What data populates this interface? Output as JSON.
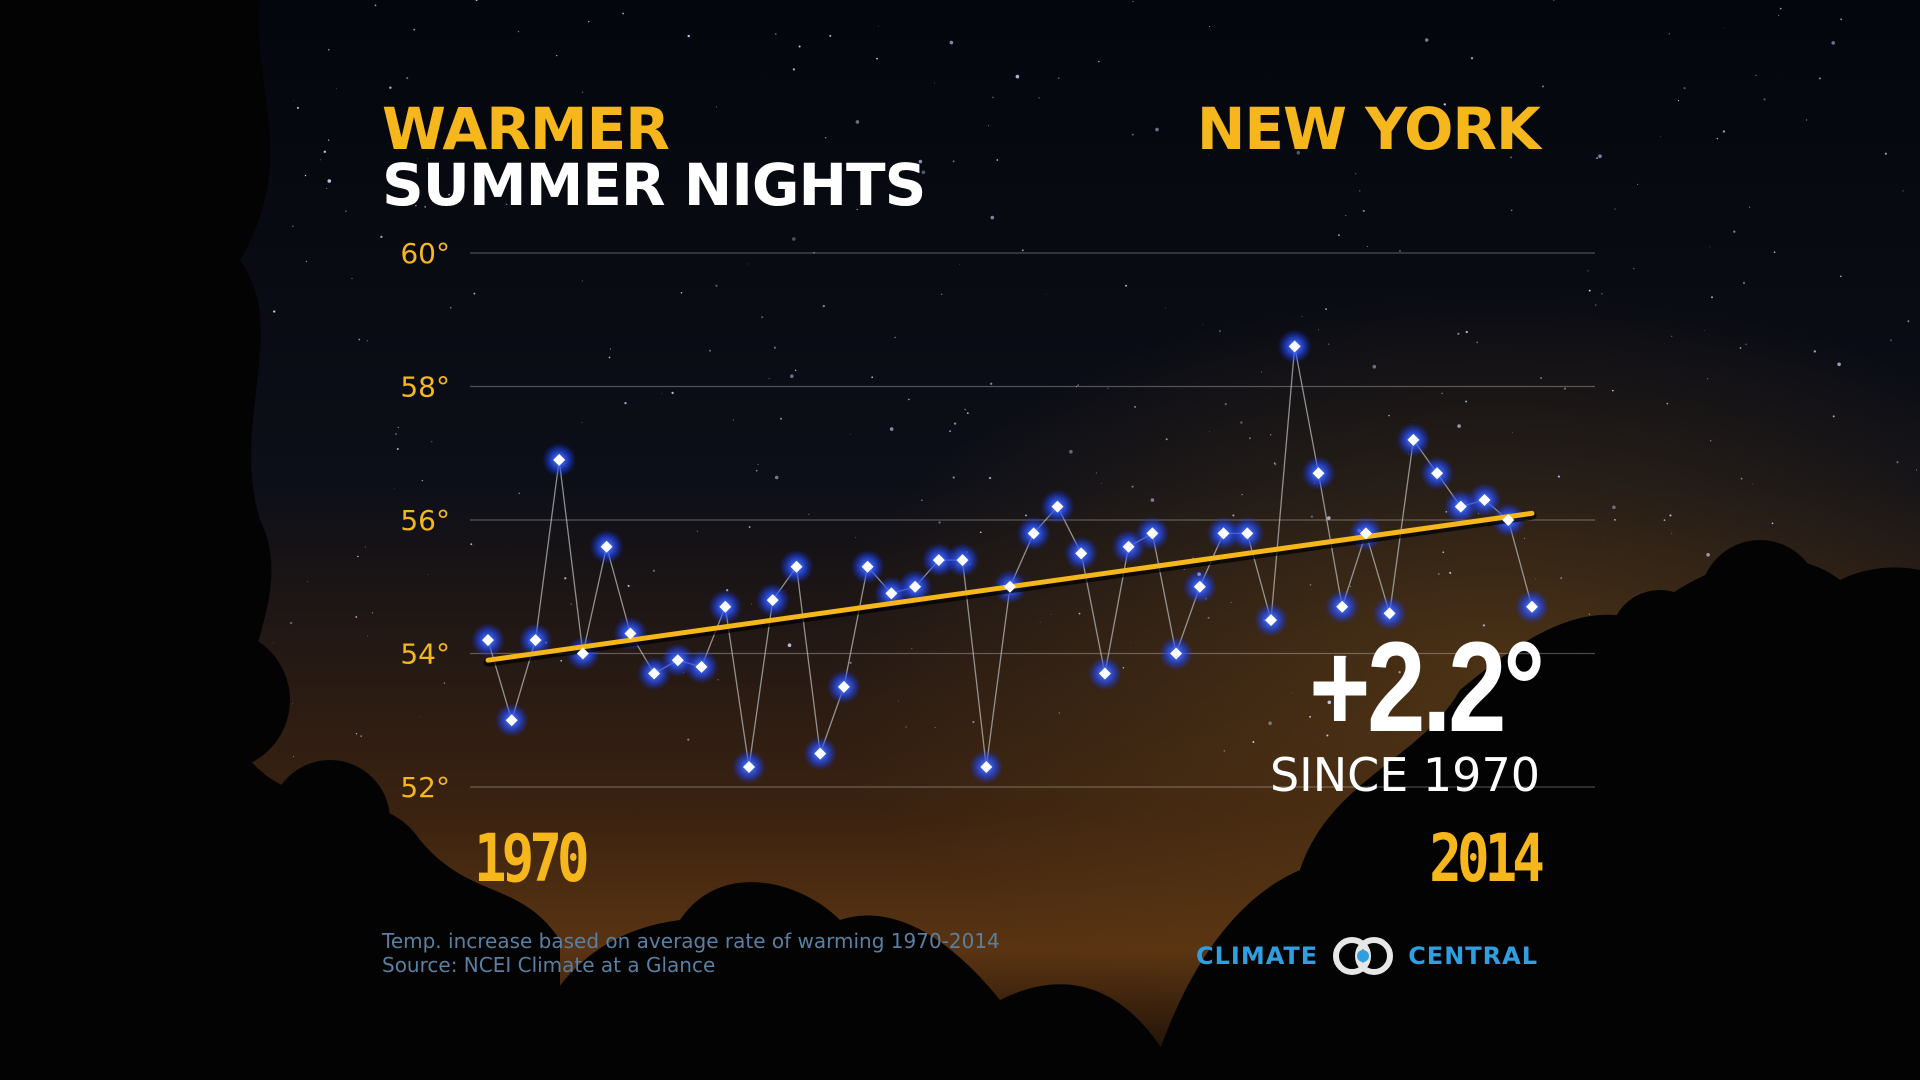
{
  "header": {
    "title_line1": "WARMER",
    "title_line2": "SUMMER NIGHTS",
    "location": "NEW YORK"
  },
  "headline": {
    "change": "+2.2°",
    "since": "SINCE 1970"
  },
  "footnotes": {
    "line1": "Temp. increase based on average rate of warming 1970-2014",
    "line2": "Source: NCEI Climate at a Glance"
  },
  "brand": {
    "left_word": "CLIMATE",
    "right_word": "CENTRAL",
    "icon": "linked-circles-logo-icon"
  },
  "colors": {
    "accent": "#f5b71b",
    "text": "#ffffff",
    "point_glow": "#2a5bff",
    "connector": "#b8b8b8",
    "footnote": "#5a7fa0",
    "brand": "#2f9fe0"
  },
  "chart_data": {
    "type": "line",
    "x_label_start": "1970",
    "x_label_end": "2014",
    "x": [
      1970,
      1971,
      1972,
      1973,
      1974,
      1975,
      1976,
      1977,
      1978,
      1979,
      1980,
      1981,
      1982,
      1983,
      1984,
      1985,
      1986,
      1987,
      1988,
      1989,
      1990,
      1991,
      1992,
      1993,
      1994,
      1995,
      1996,
      1997,
      1998,
      1999,
      2000,
      2001,
      2002,
      2003,
      2004,
      2005,
      2006,
      2007,
      2008,
      2009,
      2010,
      2011,
      2012,
      2013,
      2014
    ],
    "series": [
      {
        "values": [
          54.2,
          53.0,
          54.2,
          56.9,
          54.0,
          55.6,
          54.3,
          53.7,
          53.9,
          53.8,
          54.7,
          52.3,
          54.8,
          55.3,
          52.5,
          53.5,
          55.3,
          54.9,
          55.0,
          55.4,
          55.4,
          52.3,
          55.0,
          55.8,
          56.2,
          55.5,
          53.7,
          55.6,
          55.8,
          54.0,
          55.0,
          55.8,
          55.8,
          54.5,
          58.6,
          56.7,
          54.7,
          55.8,
          54.6,
          57.2,
          56.7,
          56.2,
          56.3,
          56.0,
          54.7
        ]
      }
    ],
    "trend": {
      "start": 53.9,
      "end": 56.1
    },
    "ylim": [
      52,
      60
    ],
    "y_ticks": [
      {
        "value": 52,
        "label": "52°"
      },
      {
        "value": 54,
        "label": "54°"
      },
      {
        "value": 56,
        "label": "56°"
      },
      {
        "value": 58,
        "label": "58°"
      },
      {
        "value": 60,
        "label": "60°"
      }
    ],
    "grid": true
  }
}
